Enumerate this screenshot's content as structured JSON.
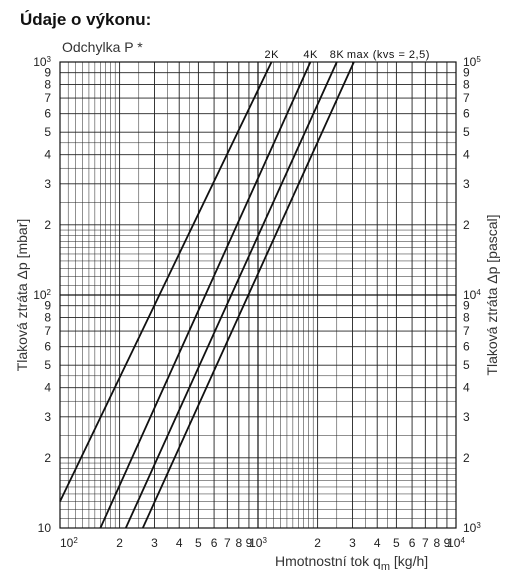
{
  "heading": "Údaje o výkonu:",
  "chart_data": {
    "type": "line",
    "log_scale_x": true,
    "log_scale_y": true,
    "title": "Odchylka P *",
    "xlabel": "Hmotnostní tok qm [kg/h]",
    "xlabel_main": "Hmotnostní tok q",
    "xlabel_sub": "m",
    "xlabel_tail": " [kg/h]",
    "ylabel_left": "Tlaková ztráta Δp [mbar]",
    "ylabel_right": "Tlaková ztráta Δp [pascal]",
    "xlim": [
      100,
      10000
    ],
    "ylim_left": [
      10,
      1000
    ],
    "ylim_right": [
      1000,
      100000
    ],
    "grid": true,
    "x_ticks": [
      {
        "v": 100,
        "base": "10",
        "exp": "2"
      },
      {
        "v": 200,
        "base": "2"
      },
      {
        "v": 300,
        "base": "3"
      },
      {
        "v": 400,
        "base": "4"
      },
      {
        "v": 500,
        "base": "5"
      },
      {
        "v": 600,
        "base": "6"
      },
      {
        "v": 700,
        "base": "7"
      },
      {
        "v": 800,
        "base": "8"
      },
      {
        "v": 900,
        "base": "9"
      },
      {
        "v": 1000,
        "base": "10",
        "exp": "3"
      },
      {
        "v": 2000,
        "base": "2"
      },
      {
        "v": 3000,
        "base": "3"
      },
      {
        "v": 4000,
        "base": "4"
      },
      {
        "v": 5000,
        "base": "5"
      },
      {
        "v": 6000,
        "base": "6"
      },
      {
        "v": 7000,
        "base": "7"
      },
      {
        "v": 8000,
        "base": "8"
      },
      {
        "v": 9000,
        "base": "9"
      },
      {
        "v": 10000,
        "base": "10",
        "exp": "4"
      }
    ],
    "y_ticks_left": [
      {
        "v": 10,
        "base": "10"
      },
      {
        "v": 20,
        "base": "2"
      },
      {
        "v": 30,
        "base": "3"
      },
      {
        "v": 40,
        "base": "4"
      },
      {
        "v": 50,
        "base": "5"
      },
      {
        "v": 60,
        "base": "6"
      },
      {
        "v": 70,
        "base": "7"
      },
      {
        "v": 80,
        "base": "8"
      },
      {
        "v": 90,
        "base": "9"
      },
      {
        "v": 100,
        "base": "10",
        "exp": "2"
      },
      {
        "v": 200,
        "base": "2"
      },
      {
        "v": 300,
        "base": "3"
      },
      {
        "v": 400,
        "base": "4"
      },
      {
        "v": 500,
        "base": "5"
      },
      {
        "v": 600,
        "base": "6"
      },
      {
        "v": 700,
        "base": "7"
      },
      {
        "v": 800,
        "base": "8"
      },
      {
        "v": 900,
        "base": "9"
      },
      {
        "v": 1000,
        "base": "10",
        "exp": "3"
      }
    ],
    "y_ticks_right": [
      {
        "v": 1000,
        "base": "10",
        "exp": "3"
      },
      {
        "v": 2000,
        "base": "2"
      },
      {
        "v": 3000,
        "base": "3"
      },
      {
        "v": 4000,
        "base": "4"
      },
      {
        "v": 5000,
        "base": "5"
      },
      {
        "v": 6000,
        "base": "6"
      },
      {
        "v": 7000,
        "base": "7"
      },
      {
        "v": 8000,
        "base": "8"
      },
      {
        "v": 9000,
        "base": "9"
      },
      {
        "v": 10000,
        "base": "10",
        "exp": "4"
      },
      {
        "v": 20000,
        "base": "2"
      },
      {
        "v": 30000,
        "base": "3"
      },
      {
        "v": 40000,
        "base": "4"
      },
      {
        "v": 50000,
        "base": "5"
      },
      {
        "v": 60000,
        "base": "6"
      },
      {
        "v": 70000,
        "base": "7"
      },
      {
        "v": 80000,
        "base": "8"
      },
      {
        "v": 90000,
        "base": "9"
      },
      {
        "v": 100000,
        "base": "10",
        "exp": "5"
      }
    ],
    "series": [
      {
        "name": "2K",
        "x": [
          100,
          1170
        ],
        "y": [
          13,
          1000
        ]
      },
      {
        "name": "4K",
        "x": [
          160,
          1840
        ],
        "y": [
          10,
          1000
        ]
      },
      {
        "name": "8K",
        "x": [
          215,
          2500
        ],
        "y": [
          10,
          1000
        ]
      },
      {
        "name": "max (kvs = 2,5)",
        "x": [
          262,
          3050
        ],
        "y": [
          10,
          1000
        ]
      }
    ]
  }
}
